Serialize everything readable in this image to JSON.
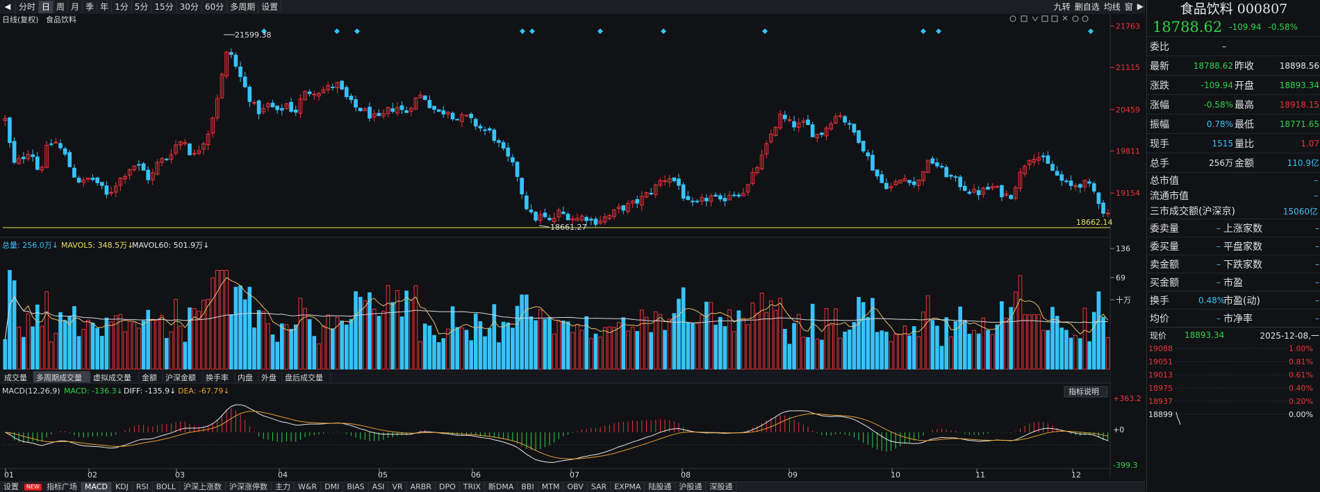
{
  "toolbar": {
    "left_arrow": "◀",
    "right_arrow": "▶",
    "periods": [
      "分时",
      "日",
      "周",
      "月",
      "季",
      "年",
      "1分",
      "5分",
      "15分",
      "30分",
      "60分",
      "多周期",
      "设置"
    ],
    "active_period": 1,
    "right_items": [
      "九转",
      "删自选",
      "均线",
      "窗"
    ]
  },
  "chart_title": {
    "left": "日线(复权)",
    "name": "食品饮料"
  },
  "price_axis": [
    "21763",
    "21115",
    "20459",
    "19811",
    "19154"
  ],
  "annotations": {
    "high": "21599.38",
    "low": "18661.27",
    "last": "18662.14"
  },
  "volume_legend": {
    "total": "总量: 256.0万↓",
    "ma5": "MAVOL5: 348.5万↓",
    "ma60": "MAVOL60: 501.9万↓"
  },
  "volume_axis": [
    "136",
    "69",
    "十万"
  ],
  "volume_tabs": [
    "成交量",
    "多周期成交量",
    "虚拟成交量",
    "金额",
    "沪深金额",
    "换手率",
    "内盘",
    "外盘",
    "盘后成交量"
  ],
  "volume_tab_active": 1,
  "macd_legend": {
    "name": "MACD(12,26,9)",
    "macd": "MACD: -136.3↓",
    "diff": "DIFF: -135.9↓",
    "dea": "DEA: -67.79↓"
  },
  "macd_axis": [
    "+363.2",
    "+0",
    "-399.3"
  ],
  "macd_button": "指标说明",
  "months": [
    "01",
    "02",
    "03",
    "04",
    "05",
    "06",
    "07",
    "08",
    "09",
    "10",
    "11",
    "12"
  ],
  "bottom_tabs": [
    "设置",
    "NEW",
    "指标广场",
    "MACD",
    "KDJ",
    "RSI",
    "BOLL",
    "沪深上涨数",
    "沪深涨停数",
    "主力",
    "W&R",
    "DMI",
    "BIAS",
    "ASI",
    "VR",
    "ARBR",
    "DPO",
    "TRIX",
    "新DMA",
    "BBI",
    "MTM",
    "OBV",
    "SAR",
    "EXPMA",
    "陆股通",
    "沪股通",
    "深股通"
  ],
  "bottom_active": "MACD",
  "quote": {
    "title": "食品饮料 000807",
    "price": "18788.62",
    "change": "-109.94",
    "pct": "-0.58%",
    "weibi_label": "委比",
    "weibi_value": "–",
    "rows": [
      {
        "l1": "最新",
        "v1": "18788.62",
        "c1": "grn",
        "l2": "昨收",
        "v2": "18898.56",
        "c2": "wh"
      },
      {
        "l1": "涨跌",
        "v1": "-109.94",
        "c1": "grn",
        "l2": "开盘",
        "v2": "18893.34",
        "c2": "grn"
      },
      {
        "l1": "涨幅",
        "v1": "-0.58%",
        "c1": "grn",
        "l2": "最高",
        "v2": "18918.15",
        "c2": "red"
      },
      {
        "l1": "振幅",
        "v1": "0.78%",
        "c1": "cy",
        "l2": "最低",
        "v2": "18771.65",
        "c2": "grn"
      },
      {
        "l1": "现手",
        "v1": "1515",
        "c1": "cy",
        "l2": "量比",
        "v2": "1.07",
        "c2": "red"
      },
      {
        "l1": "总手",
        "v1": "256万",
        "c1": "wh",
        "l2": "金额",
        "v2": "110.9亿",
        "c2": "cy"
      }
    ],
    "market_rows": [
      {
        "l": "总市值",
        "v": "–"
      },
      {
        "l": "流通市值",
        "v": "–"
      },
      {
        "l": "三市成交额(沪深京)",
        "v": "15060亿"
      }
    ],
    "rows2": [
      {
        "l1": "委卖量",
        "v1": "–",
        "l2": "上涨家数",
        "v2": "–"
      },
      {
        "l1": "委买量",
        "v1": "–",
        "l2": "平盘家数",
        "v2": "–"
      },
      {
        "l1": "卖金额",
        "v1": "–",
        "l2": "下跌家数",
        "v2": "–"
      },
      {
        "l1": "买金额",
        "v1": "–",
        "l2": "市盈",
        "v2": "–"
      },
      {
        "l1": "换手",
        "v1": "0.48%",
        "l2": "市盈(动)",
        "v2": "–"
      },
      {
        "l1": "均价",
        "v1": "–",
        "l2": "市净率",
        "v2": "–"
      }
    ],
    "mini": {
      "label": "现价",
      "price": "18893.34",
      "date": "2025-12-08,一",
      "levels": [
        "19088",
        "19051",
        "19013",
        "18975",
        "18937",
        "18899"
      ],
      "pcts": [
        "1.00%",
        "0.81%",
        "0.61%",
        "0.40%",
        "0.20%",
        "0.00%"
      ]
    }
  },
  "chart_data": {
    "type": "candlestick",
    "price_range": [
      18550,
      21800
    ],
    "close_points": [
      [
        0,
        20300
      ],
      [
        10,
        19600
      ],
      [
        20,
        19700
      ],
      [
        30,
        19850
      ],
      [
        40,
        19450
      ],
      [
        50,
        19900
      ],
      [
        60,
        19950
      ],
      [
        70,
        19750
      ],
      [
        80,
        19450
      ],
      [
        90,
        19300
      ],
      [
        100,
        19400
      ],
      [
        110,
        19300
      ],
      [
        120,
        19100
      ],
      [
        130,
        19300
      ],
      [
        140,
        19450
      ],
      [
        150,
        19600
      ],
      [
        160,
        19550
      ],
      [
        170,
        19350
      ],
      [
        180,
        19650
      ],
      [
        190,
        19700
      ],
      [
        200,
        19900
      ],
      [
        210,
        20000
      ],
      [
        220,
        19700
      ],
      [
        230,
        19900
      ],
      [
        240,
        20150
      ],
      [
        250,
        20700
      ],
      [
        262,
        21450
      ],
      [
        270,
        21150
      ],
      [
        280,
        20850
      ],
      [
        290,
        20550
      ],
      [
        300,
        20400
      ],
      [
        310,
        20550
      ],
      [
        320,
        20400
      ],
      [
        330,
        20550
      ],
      [
        340,
        20400
      ],
      [
        350,
        20700
      ],
      [
        360,
        20750
      ],
      [
        370,
        20750
      ],
      [
        380,
        20800
      ],
      [
        390,
        20850
      ],
      [
        400,
        20650
      ],
      [
        410,
        20500
      ],
      [
        420,
        20450
      ],
      [
        430,
        20350
      ],
      [
        440,
        20300
      ],
      [
        450,
        20450
      ],
      [
        460,
        20500
      ],
      [
        470,
        20400
      ],
      [
        480,
        20600
      ],
      [
        490,
        20700
      ],
      [
        500,
        20500
      ],
      [
        510,
        20400
      ],
      [
        520,
        20450
      ],
      [
        530,
        20300
      ],
      [
        540,
        20350
      ],
      [
        550,
        20250
      ],
      [
        560,
        20150
      ],
      [
        570,
        20100
      ],
      [
        580,
        19900
      ],
      [
        590,
        19700
      ],
      [
        600,
        19500
      ],
      [
        610,
        19000
      ],
      [
        620,
        18750
      ],
      [
        630,
        18800
      ],
      [
        640,
        18700
      ],
      [
        650,
        18850
      ],
      [
        660,
        18800
      ],
      [
        670,
        18750
      ],
      [
        680,
        18800
      ],
      [
        690,
        18700
      ],
      [
        700,
        18750
      ],
      [
        710,
        18800
      ],
      [
        720,
        18900
      ],
      [
        730,
        18950
      ],
      [
        740,
        19000
      ],
      [
        750,
        19100
      ],
      [
        760,
        19200
      ],
      [
        770,
        19350
      ],
      [
        780,
        19400
      ],
      [
        790,
        19300
      ],
      [
        800,
        19000
      ],
      [
        810,
        18950
      ],
      [
        820,
        19050
      ],
      [
        830,
        19100
      ],
      [
        840,
        19000
      ],
      [
        850,
        19150
      ],
      [
        860,
        19150
      ],
      [
        870,
        19200
      ],
      [
        880,
        19500
      ],
      [
        890,
        19750
      ],
      [
        900,
        20100
      ],
      [
        910,
        20350
      ],
      [
        920,
        20250
      ],
      [
        930,
        20200
      ],
      [
        940,
        20250
      ],
      [
        950,
        20050
      ],
      [
        960,
        20100
      ],
      [
        970,
        20300
      ],
      [
        980,
        20400
      ],
      [
        990,
        20200
      ],
      [
        1000,
        20050
      ],
      [
        1010,
        19800
      ],
      [
        1020,
        19500
      ],
      [
        1030,
        19300
      ],
      [
        1040,
        19250
      ],
      [
        1050,
        19350
      ],
      [
        1060,
        19400
      ],
      [
        1070,
        19250
      ],
      [
        1080,
        19600
      ],
      [
        1090,
        19650
      ],
      [
        1100,
        19500
      ],
      [
        1110,
        19400
      ],
      [
        1120,
        19300
      ],
      [
        1130,
        19200
      ],
      [
        1140,
        19150
      ],
      [
        1150,
        19200
      ],
      [
        1160,
        19250
      ],
      [
        1170,
        19150
      ],
      [
        1180,
        19100
      ],
      [
        1190,
        19400
      ],
      [
        1200,
        19700
      ],
      [
        1210,
        19750
      ],
      [
        1220,
        19650
      ],
      [
        1230,
        19500
      ],
      [
        1240,
        19350
      ],
      [
        1250,
        19250
      ],
      [
        1260,
        19300
      ],
      [
        1270,
        19300
      ],
      [
        1280,
        19150
      ],
      [
        1290,
        18850
      ],
      [
        1300,
        18800
      ]
    ]
  }
}
